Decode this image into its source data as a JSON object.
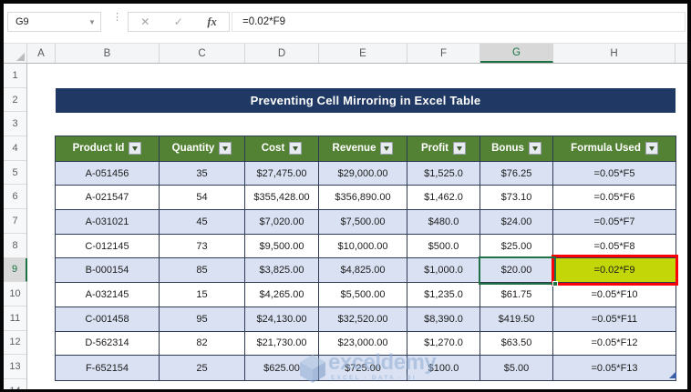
{
  "formula_bar": {
    "name_box_value": "G9",
    "formula_value": "=0.02*F9",
    "cancel_label": "✕",
    "enter_label": "✓",
    "fx_label": "fx",
    "dots": "⋮"
  },
  "sheet": {
    "column_letters": [
      "A",
      "B",
      "C",
      "D",
      "E",
      "F",
      "G",
      "H"
    ],
    "selected_column": "G",
    "row_numbers": [
      "1",
      "2",
      "3",
      "4",
      "5",
      "6",
      "7",
      "8",
      "9",
      "10",
      "11",
      "12",
      "13",
      "14"
    ],
    "selected_row": "9"
  },
  "banner": {
    "title": "Preventing Cell Mirroring in Excel Table",
    "bg_color": "#1F3864",
    "text_color": "#FFFFFF"
  },
  "table": {
    "headers": [
      "Product Id",
      "Quantity",
      "Cost",
      "Revenue",
      "Profit",
      "Bonus",
      "Formula Used"
    ],
    "header_bg": "#548235",
    "band_color": "#D9E1F2",
    "rows": [
      [
        "A-051456",
        "35",
        "$27,475.00",
        "$29,000.00",
        "$1,525.0",
        "$76.25",
        "=0.05*F5"
      ],
      [
        "A-021547",
        "54",
        "$355,428.00",
        "$356,890.00",
        "$1,462.0",
        "$73.10",
        "=0.05*F6"
      ],
      [
        "A-031021",
        "45",
        "$7,020.00",
        "$7,500.00",
        "$480.0",
        "$24.00",
        "=0.05*F7"
      ],
      [
        "C-012145",
        "73",
        "$9,500.00",
        "$10,000.00",
        "$500.0",
        "$25.00",
        "=0.05*F8"
      ],
      [
        "B-000154",
        "85",
        "$3,825.00",
        "$4,825.00",
        "$1,000.0",
        "$20.00",
        "=0.02*F9"
      ],
      [
        "A-032145",
        "15",
        "$4,265.00",
        "$5,500.00",
        "$1,235.0",
        "$61.75",
        "=0.05*F10"
      ],
      [
        "C-001458",
        "95",
        "$24,130.00",
        "$32,520.00",
        "$8,390.0",
        "$419.50",
        "=0.05*F11"
      ],
      [
        "D-562314",
        "82",
        "$21,730.00",
        "$23,000.00",
        "$1,270.0",
        "$63.50",
        "=0.05*F12"
      ],
      [
        "F-652154",
        "25",
        "$625.00",
        "$725.00",
        "$100.0",
        "$5.00",
        "=0.05*F13"
      ]
    ],
    "selected_cell": {
      "ref": "G9",
      "value": "$20.00",
      "border_color": "#1E7145"
    },
    "highlighted_cell": {
      "ref": "H9",
      "value": "=0.02*F9",
      "bg_color": "#C3D608",
      "border_color": "#FF0000"
    }
  },
  "watermark": {
    "brand": "exceldemy",
    "tagline": "EXCEL · DATA · BI",
    "color": "#8FADD4"
  }
}
